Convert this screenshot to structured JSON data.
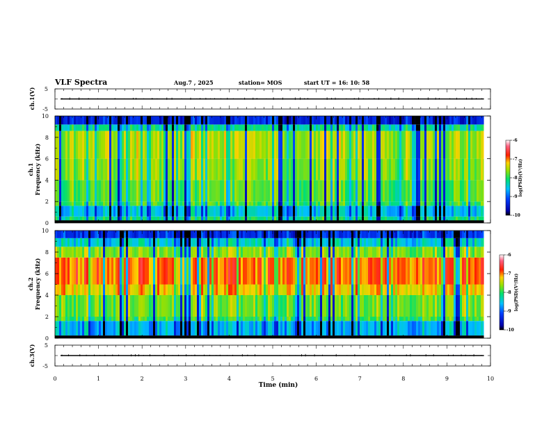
{
  "header": {
    "title": "VLF Spectra",
    "date": "Aug.7  , 2025",
    "station": "station= MOS",
    "start": "start  UT  =    16: 10: 58"
  },
  "chart_data": [
    {
      "id": "ch1-waveform",
      "type": "line",
      "ylabel": "ch.1(V)",
      "ylim": [
        -5,
        5
      ],
      "ytick_labels": [
        "5",
        "-5"
      ],
      "xlim": [
        0,
        10
      ],
      "baseline": 0,
      "duration_min": 9.85
    },
    {
      "id": "ch1-spectrogram",
      "type": "heatmap",
      "ylabel_line1": "ch.1",
      "ylabel_line2": "Frequency (kHz)",
      "ylim": [
        0,
        10
      ],
      "ytick_labels": [
        "0",
        "2",
        "4",
        "6",
        "8",
        "10"
      ],
      "xlim": [
        0,
        10
      ],
      "duration_min": 9.85,
      "colorbar": {
        "label": "log(PSD)(V²/Hz)",
        "range": [
          -10,
          -6
        ],
        "tick_labels": [
          "-6",
          "-7",
          "-8",
          "-9",
          "-10"
        ]
      },
      "bands": [
        {
          "f0": 0,
          "f1": 0.25,
          "level": -10.0
        },
        {
          "f0": 0.25,
          "f1": 0.6,
          "level": -8.2
        },
        {
          "f0": 0.6,
          "f1": 1.6,
          "level": -8.6
        },
        {
          "f0": 1.6,
          "f1": 2.0,
          "level": -8.0
        },
        {
          "f0": 2.0,
          "f1": 4.0,
          "level": -7.9
        },
        {
          "f0": 4.0,
          "f1": 6.0,
          "level": -7.7
        },
        {
          "f0": 6.0,
          "f1": 8.6,
          "level": -7.6
        },
        {
          "f0": 8.6,
          "f1": 9.2,
          "level": -8.3
        },
        {
          "f0": 9.2,
          "f1": 10.0,
          "level": -9.4
        }
      ]
    },
    {
      "id": "ch2-spectrogram",
      "type": "heatmap",
      "ylabel_line1": "ch.2",
      "ylabel_line2": "Frequency (kHz)",
      "ylim": [
        0,
        10
      ],
      "ytick_labels": [
        "0",
        "2",
        "4",
        "6",
        "8",
        "10"
      ],
      "xlim": [
        0,
        10
      ],
      "duration_min": 9.85,
      "colorbar": {
        "label": "log(PSD)(V²/Hz)",
        "range": [
          -10,
          -6
        ],
        "tick_labels": [
          "-6",
          "-7",
          "-8",
          "-9",
          "-10"
        ]
      },
      "bands": [
        {
          "f0": 0,
          "f1": 0.25,
          "level": -10.0
        },
        {
          "f0": 0.25,
          "f1": 1.6,
          "level": -8.7
        },
        {
          "f0": 1.6,
          "f1": 2.0,
          "level": -8.0
        },
        {
          "f0": 2.0,
          "f1": 4.0,
          "level": -7.8
        },
        {
          "f0": 4.0,
          "f1": 5.0,
          "level": -7.3
        },
        {
          "f0": 5.0,
          "f1": 7.5,
          "level": -7.0
        },
        {
          "f0": 7.5,
          "f1": 8.5,
          "level": -7.7
        },
        {
          "f0": 8.5,
          "f1": 9.3,
          "level": -8.5
        },
        {
          "f0": 9.3,
          "f1": 10.0,
          "level": -9.3
        }
      ]
    },
    {
      "id": "ch3-waveform",
      "type": "line",
      "ylabel": "ch.3(V)",
      "ylim": [
        -5,
        5
      ],
      "ytick_labels": [
        "5",
        "-5"
      ],
      "xlim": [
        0,
        10
      ],
      "baseline": 0,
      "duration_min": 9.85
    }
  ],
  "xaxis": {
    "label": "Time  (min)",
    "range": [
      0,
      10
    ],
    "tick_labels": [
      "0",
      "1",
      "2",
      "3",
      "4",
      "5",
      "6",
      "7",
      "8",
      "9",
      "10"
    ]
  }
}
